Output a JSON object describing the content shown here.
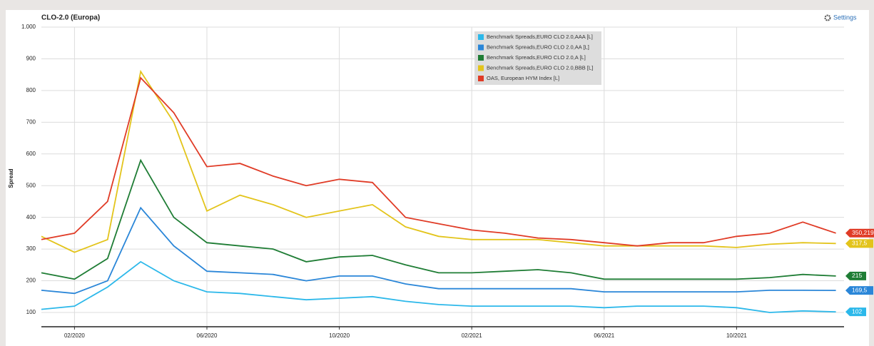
{
  "chart_data": {
    "type": "line",
    "title": "CLO-2.0 (Europa)",
    "settings_label": "Settings",
    "y_label": "Spread",
    "categories": [
      null,
      "02/2020",
      null,
      null,
      null,
      "06/2020",
      null,
      null,
      null,
      "10/2020",
      null,
      null,
      null,
      "02/2021",
      null,
      null,
      null,
      "06/2021",
      null,
      null,
      null,
      "10/2021",
      null,
      null,
      null
    ],
    "ylim": [
      55,
      1000
    ],
    "yticks": [
      100,
      200,
      300,
      400,
      500,
      600,
      700,
      800,
      900,
      {
        "value": 1000,
        "label": "1.000"
      }
    ],
    "grid": true,
    "legend": "top",
    "series": [
      {
        "name": "Benchmark Spreads,EURO CLO 2.0,AAA [L]",
        "color": "#2cb8ea",
        "values": [
          110,
          120,
          180,
          260,
          200,
          165,
          160,
          150,
          140,
          145,
          150,
          135,
          125,
          120,
          120,
          120,
          120,
          115,
          120,
          120,
          120,
          115,
          100,
          105,
          102
        ],
        "value_labels": [
          null,
          null,
          null,
          null,
          null,
          null,
          null,
          null,
          null,
          null,
          null,
          null,
          null,
          null,
          null,
          null,
          null,
          null,
          null,
          null,
          null,
          null,
          null,
          null,
          "102"
        ]
      },
      {
        "name": "Benchmark Spreads,EURO CLO 2.0,AA [L]",
        "color": "#2a86d8",
        "values": [
          170,
          160,
          200,
          430,
          310,
          230,
          225,
          220,
          200,
          215,
          215,
          190,
          175,
          175,
          175,
          175,
          175,
          165,
          165,
          165,
          165,
          165,
          170,
          170,
          169.5
        ],
        "value_labels": [
          null,
          null,
          null,
          null,
          null,
          null,
          null,
          null,
          null,
          null,
          null,
          null,
          null,
          null,
          null,
          null,
          null,
          null,
          null,
          null,
          null,
          null,
          null,
          null,
          "169,5"
        ]
      },
      {
        "name": "Benchmark Spreads,EURO CLO 2.0,A [L]",
        "color": "#1f7d35",
        "values": [
          225,
          205,
          270,
          580,
          400,
          320,
          310,
          300,
          260,
          275,
          280,
          250,
          225,
          225,
          230,
          235,
          225,
          205,
          205,
          205,
          205,
          205,
          210,
          220,
          215
        ],
        "value_labels": [
          null,
          null,
          null,
          null,
          null,
          null,
          null,
          null,
          null,
          null,
          null,
          null,
          null,
          null,
          null,
          null,
          null,
          null,
          null,
          null,
          null,
          null,
          null,
          null,
          "215"
        ]
      },
      {
        "name": "Benchmark Spreads,EURO CLO 2.0,BBB [L]",
        "color": "#e3c41b",
        "values": [
          340,
          290,
          330,
          860,
          700,
          420,
          470,
          440,
          400,
          420,
          440,
          370,
          340,
          330,
          330,
          330,
          320,
          310,
          310,
          310,
          310,
          305,
          315,
          320,
          317.5
        ],
        "value_labels": [
          null,
          null,
          null,
          null,
          null,
          null,
          null,
          null,
          null,
          null,
          null,
          null,
          null,
          null,
          null,
          null,
          null,
          null,
          null,
          null,
          null,
          null,
          null,
          null,
          "317,5"
        ]
      },
      {
        "name": "OAS, European HYM Index [L]",
        "color": "#e03b26",
        "values": [
          330,
          350,
          450,
          840,
          730,
          560,
          570,
          530,
          500,
          520,
          510,
          400,
          380,
          360,
          350,
          335,
          330,
          320,
          310,
          320,
          320,
          340,
          350,
          385,
          350.219
        ],
        "value_labels": [
          null,
          null,
          null,
          null,
          null,
          null,
          null,
          null,
          null,
          null,
          null,
          null,
          null,
          null,
          null,
          null,
          null,
          null,
          null,
          null,
          null,
          null,
          null,
          null,
          "350,219"
        ]
      }
    ]
  }
}
